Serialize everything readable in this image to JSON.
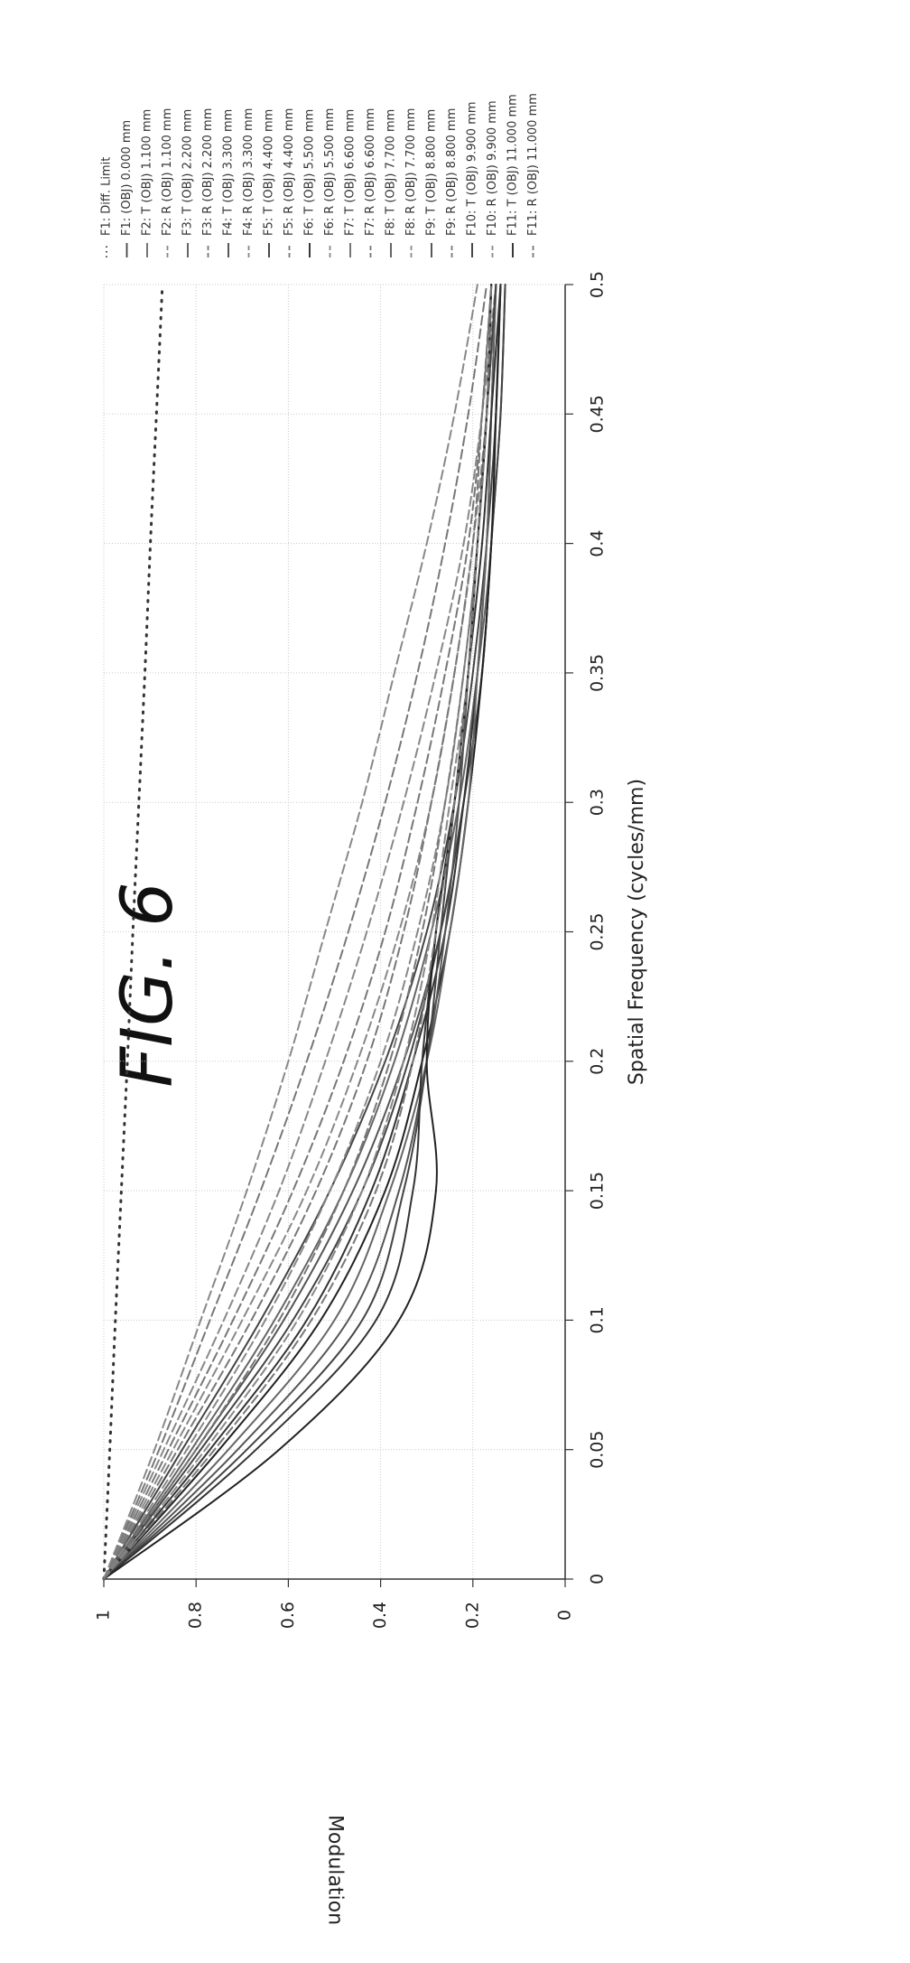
{
  "figure_label": "FIG. 6",
  "chart_data": {
    "type": "line",
    "title": "FIG. 6",
    "xlabel": "Spatial Frequency (cycles/mm)",
    "ylabel": "Modulation",
    "xlim": [
      0,
      0.5
    ],
    "ylim": [
      0,
      1
    ],
    "x_ticks": [
      "0",
      "0.05",
      "0.1",
      "0.15",
      "0.2",
      "0.25",
      "0.3",
      "0.35",
      "0.4",
      "0.45",
      "0.5"
    ],
    "y_ticks": [
      "0",
      "0.2",
      "0.4",
      "0.6",
      "0.8",
      "1"
    ],
    "grid": true,
    "legend_placement": "right",
    "x": [
      0,
      0.05,
      0.1,
      0.15,
      0.2,
      0.25,
      0.3,
      0.35,
      0.4,
      0.45,
      0.5
    ],
    "series": [
      {
        "name": "F1: Diff. Limit",
        "style": "dotted",
        "values": [
          1.0,
          0.987,
          0.975,
          0.962,
          0.949,
          0.937,
          0.924,
          0.911,
          0.899,
          0.886,
          0.873
        ]
      },
      {
        "name": "F1: (OBJ) 0.000 mm",
        "style": "solid",
        "values": [
          1.0,
          0.83,
          0.66,
          0.51,
          0.39,
          0.3,
          0.24,
          0.2,
          0.17,
          0.15,
          0.14
        ]
      },
      {
        "name": "F2: T (OBJ) 1.100 mm",
        "style": "solid",
        "values": [
          1.0,
          0.81,
          0.63,
          0.48,
          0.37,
          0.29,
          0.23,
          0.19,
          0.16,
          0.15,
          0.14
        ]
      },
      {
        "name": "F2: R (OBJ) 1.100 mm",
        "style": "dashed",
        "values": [
          1.0,
          0.85,
          0.7,
          0.56,
          0.45,
          0.36,
          0.29,
          0.24,
          0.2,
          0.17,
          0.15
        ]
      },
      {
        "name": "F3: T (OBJ) 2.200 mm",
        "style": "solid",
        "values": [
          1.0,
          0.8,
          0.61,
          0.46,
          0.35,
          0.27,
          0.22,
          0.18,
          0.16,
          0.14,
          0.13
        ]
      },
      {
        "name": "F3: R (OBJ) 2.200 mm",
        "style": "dashed",
        "values": [
          1.0,
          0.86,
          0.72,
          0.59,
          0.48,
          0.39,
          0.32,
          0.26,
          0.21,
          0.18,
          0.16
        ]
      },
      {
        "name": "F4: T (OBJ) 3.300 mm",
        "style": "solid",
        "values": [
          1.0,
          0.79,
          0.59,
          0.44,
          0.34,
          0.27,
          0.22,
          0.18,
          0.16,
          0.14,
          0.13
        ]
      },
      {
        "name": "F4: R (OBJ) 3.300 mm",
        "style": "dashed",
        "values": [
          1.0,
          0.87,
          0.74,
          0.62,
          0.52,
          0.43,
          0.35,
          0.28,
          0.22,
          0.18,
          0.15
        ]
      },
      {
        "name": "F5: T (OBJ) 4.400 mm",
        "style": "solid",
        "values": [
          1.0,
          0.77,
          0.56,
          0.42,
          0.33,
          0.26,
          0.22,
          0.19,
          0.17,
          0.16,
          0.15
        ]
      },
      {
        "name": "F5: R (OBJ) 4.400 mm",
        "style": "dashed",
        "values": [
          1.0,
          0.88,
          0.77,
          0.66,
          0.56,
          0.47,
          0.39,
          0.32,
          0.26,
          0.21,
          0.17
        ]
      },
      {
        "name": "F6: T (OBJ) 5.500 mm",
        "style": "solid",
        "values": [
          1.0,
          0.75,
          0.53,
          0.39,
          0.31,
          0.25,
          0.21,
          0.18,
          0.16,
          0.15,
          0.14
        ]
      },
      {
        "name": "F6: R (OBJ) 5.500 mm",
        "style": "dashed",
        "values": [
          1.0,
          0.89,
          0.79,
          0.69,
          0.6,
          0.52,
          0.44,
          0.37,
          0.3,
          0.24,
          0.19
        ]
      },
      {
        "name": "F7: T (OBJ) 6.600 mm",
        "style": "solid",
        "values": [
          1.0,
          0.73,
          0.5,
          0.38,
          0.3,
          0.25,
          0.21,
          0.19,
          0.17,
          0.16,
          0.15
        ]
      },
      {
        "name": "F7: R (OBJ) 6.600 mm",
        "style": "dashed",
        "values": [
          1.0,
          0.84,
          0.68,
          0.54,
          0.43,
          0.35,
          0.29,
          0.24,
          0.2,
          0.18,
          0.16
        ]
      },
      {
        "name": "F8: T (OBJ) 7.700 mm",
        "style": "solid",
        "values": [
          1.0,
          0.71,
          0.47,
          0.36,
          0.3,
          0.26,
          0.23,
          0.21,
          0.19,
          0.17,
          0.16
        ]
      },
      {
        "name": "F8: R (OBJ) 7.700 mm",
        "style": "dashed",
        "values": [
          1.0,
          0.82,
          0.65,
          0.51,
          0.4,
          0.32,
          0.26,
          0.22,
          0.19,
          0.17,
          0.15
        ]
      },
      {
        "name": "F9: T (OBJ) 8.800 mm",
        "style": "solid",
        "values": [
          1.0,
          0.69,
          0.44,
          0.35,
          0.3,
          0.27,
          0.24,
          0.21,
          0.19,
          0.17,
          0.15
        ]
      },
      {
        "name": "F9: R (OBJ) 8.800 mm",
        "style": "dashed",
        "values": [
          1.0,
          0.8,
          0.62,
          0.48,
          0.38,
          0.31,
          0.26,
          0.22,
          0.19,
          0.17,
          0.16
        ]
      },
      {
        "name": "F10: T (OBJ) 9.900 mm",
        "style": "solid",
        "values": [
          1.0,
          0.67,
          0.41,
          0.33,
          0.31,
          0.28,
          0.24,
          0.21,
          0.18,
          0.16,
          0.14
        ]
      },
      {
        "name": "F10: R (OBJ) 9.900 mm",
        "style": "dashed",
        "values": [
          1.0,
          0.78,
          0.58,
          0.44,
          0.35,
          0.29,
          0.25,
          0.21,
          0.19,
          0.17,
          0.16
        ]
      },
      {
        "name": "F11: T (OBJ) 11.000 mm",
        "style": "solid",
        "values": [
          1.0,
          0.62,
          0.36,
          0.28,
          0.3,
          0.28,
          0.24,
          0.21,
          0.19,
          0.17,
          0.16
        ]
      },
      {
        "name": "F11: R (OBJ) 11.000 mm",
        "style": "dashed",
        "values": [
          1.0,
          0.76,
          0.55,
          0.41,
          0.33,
          0.28,
          0.24,
          0.21,
          0.19,
          0.17,
          0.16
        ]
      }
    ]
  }
}
